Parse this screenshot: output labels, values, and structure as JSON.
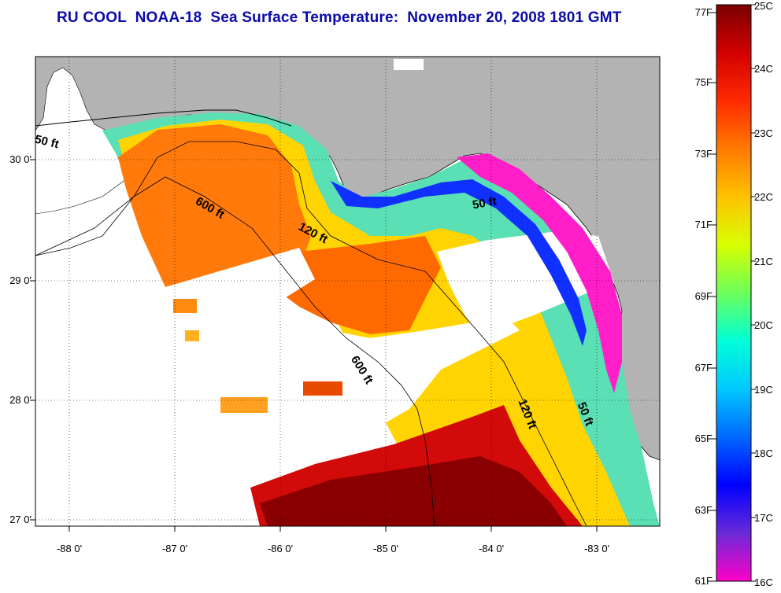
{
  "title": "RU COOL  NOAA-18  Sea Surface Temperature:  November 20, 2008 1801 GMT",
  "latitude_labels": [
    "30 0'",
    "29 0'",
    "28 0'",
    "27 0'"
  ],
  "longitude_labels": [
    "-88 0'",
    "-87 0'",
    "-86 0'",
    "-85 0'",
    "-84 0'",
    "-83 0'"
  ],
  "contour_labels": [
    "50 ft",
    "600 ft",
    "120 ft",
    "50 ft",
    "600 ft",
    "120 ft",
    "50 ft"
  ],
  "colorbar": {
    "fahrenheit_labels": [
      "77F",
      "75F",
      "73F",
      "71F",
      "69F",
      "67F",
      "65F",
      "63F",
      "61F"
    ],
    "celsius_labels": [
      "25C",
      "24C",
      "23C",
      "22C",
      "21C",
      "20C",
      "19C",
      "18C",
      "17C",
      "16C"
    ],
    "colors": [
      "#7a0000",
      "#d20000",
      "#ff2a00",
      "#ff7a00",
      "#ffc200",
      "#d8ff00",
      "#6cff5a",
      "#00ffd8",
      "#00c8ff",
      "#0068ff",
      "#0000ff",
      "#6a2ad8",
      "#ff00c8"
    ]
  },
  "map_colors": {
    "land": "#b3b3b3",
    "no_data": "#ffffff",
    "frame": "#000000"
  }
}
